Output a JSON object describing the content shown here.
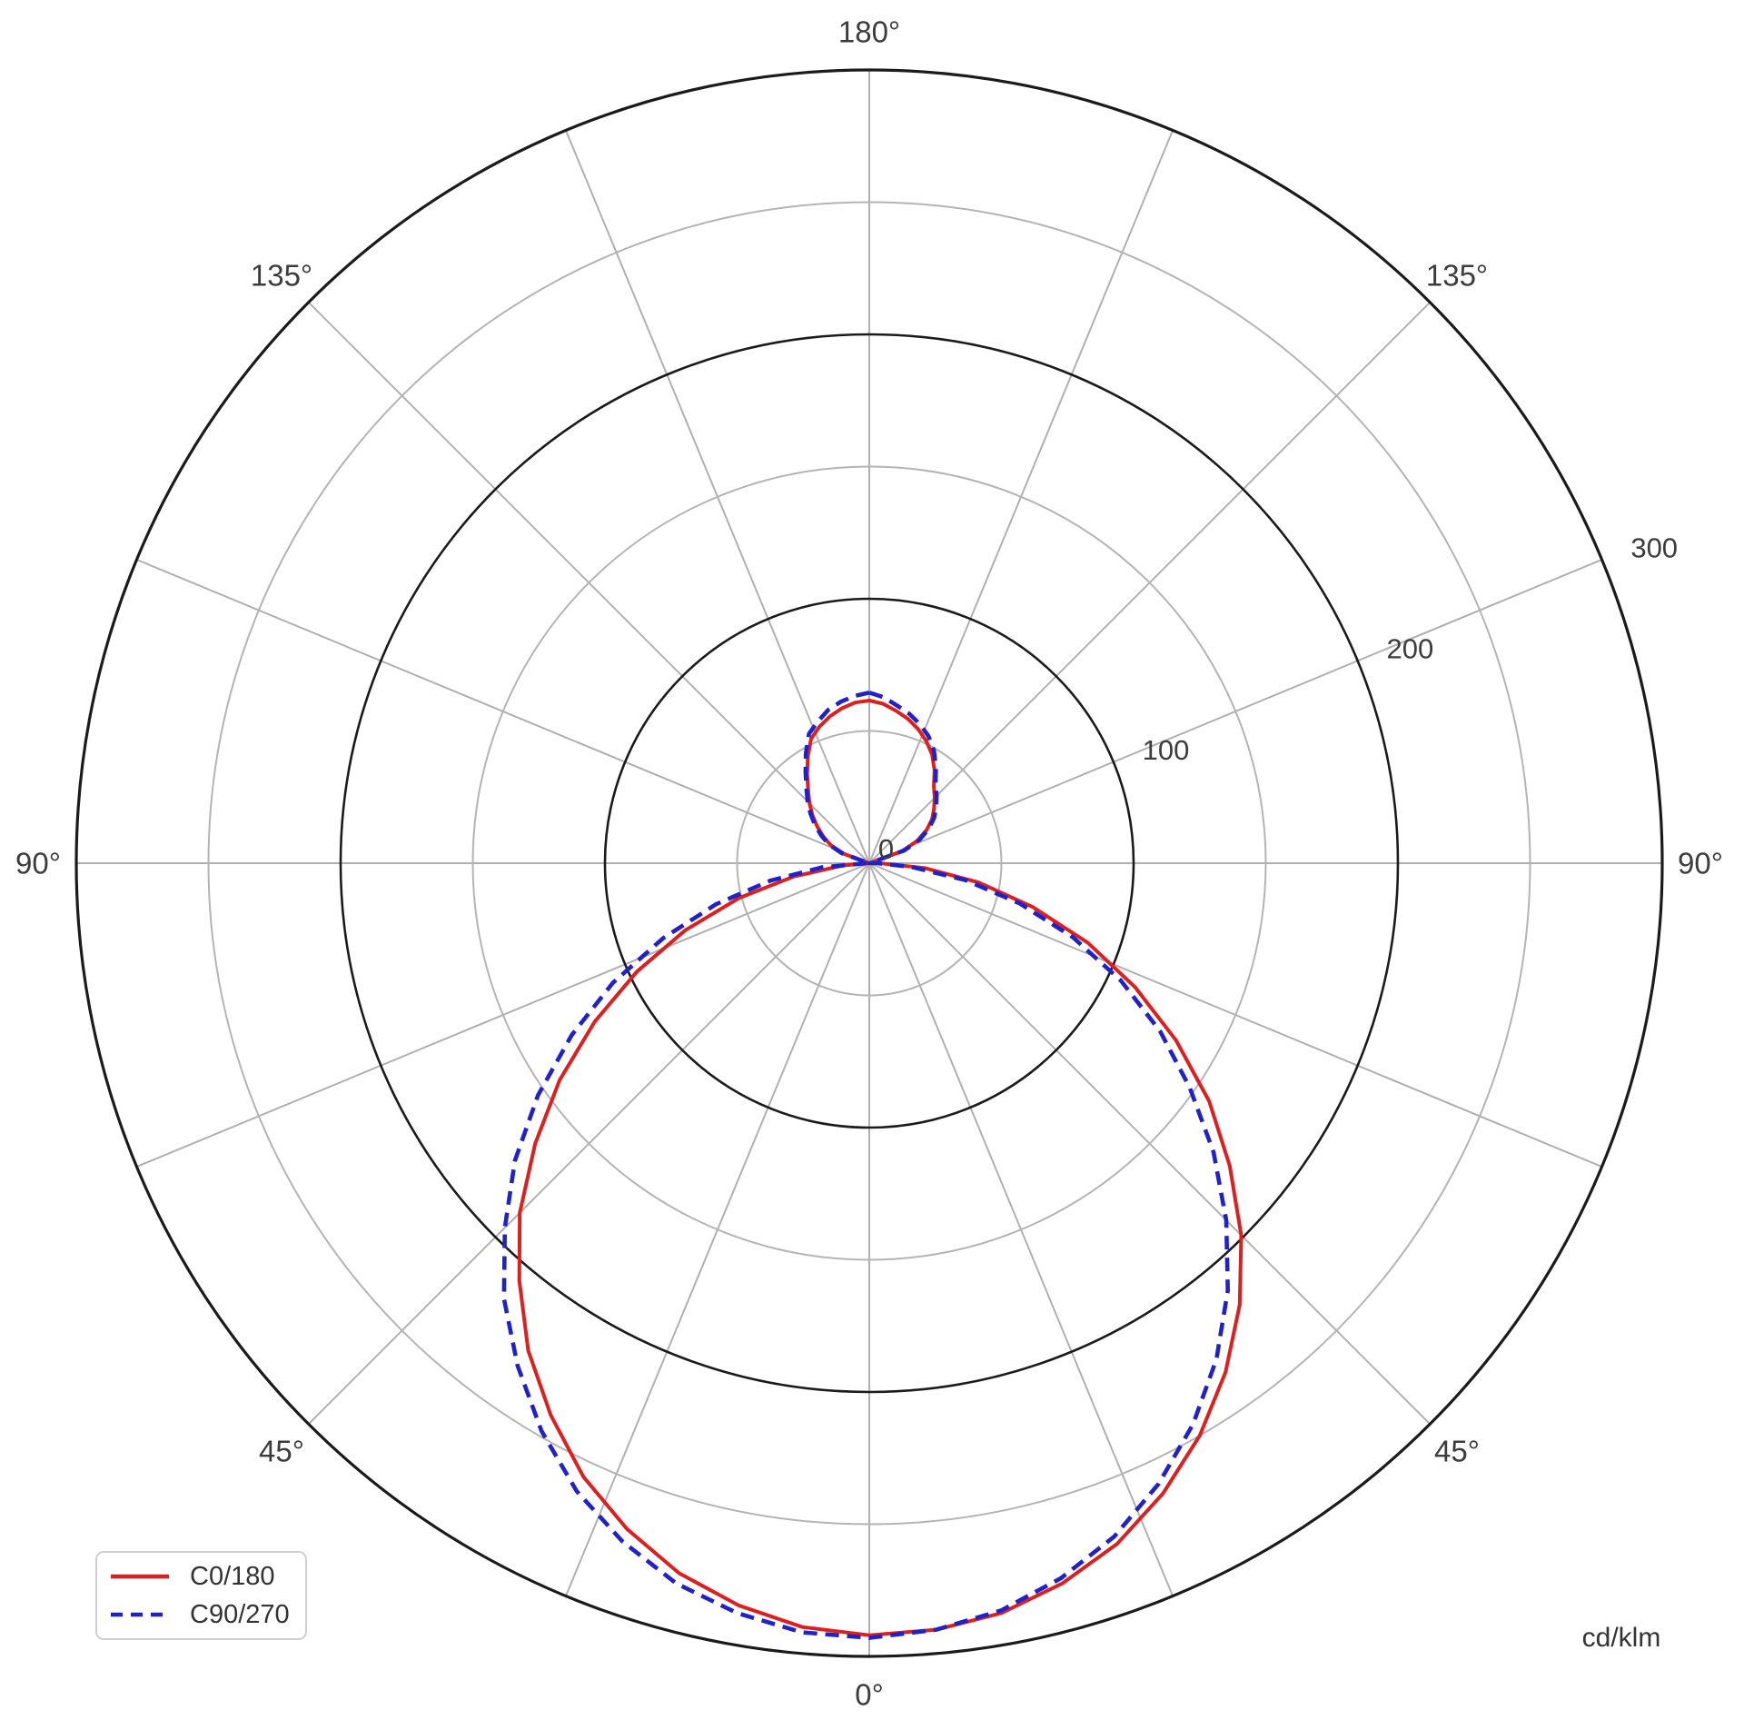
{
  "units_label": "cd/klm",
  "colors": {
    "background": "#ffffff",
    "grid_minor": "#b4b4b4",
    "grid_major": "#1b1b1b",
    "spoke": "#b0b0b0",
    "text": "#3c3c3c",
    "c0_180": "#dc1f1f",
    "c90_270": "#2121c8"
  },
  "legend": {
    "items": [
      {
        "label": "C0/180",
        "color": "#dc1f1f",
        "style": "solid",
        "dasharray": ""
      },
      {
        "label": "C90/270",
        "color": "#2121c8",
        "style": "dashed",
        "dasharray": "13 9"
      }
    ]
  },
  "chart_data": {
    "type": "line",
    "subtype": "polar-photometric",
    "title": "",
    "units": "cd/klm",
    "angle_convention": "gamma measured from downward vertical (0° at bottom, 180° at top); positive angles to the right half (C0 / C90 side), negative to the left half (C180 / C270 side)",
    "gamma_deg": [
      -180,
      -175,
      -170,
      -165,
      -160,
      -155,
      -150,
      -145,
      -140,
      -135,
      -130,
      -125,
      -120,
      -115,
      -110,
      -105,
      -100,
      -95,
      -90,
      -85,
      -80,
      -75,
      -70,
      -65,
      -60,
      -55,
      -50,
      -45,
      -40,
      -35,
      -30,
      -25,
      -20,
      -15,
      -10,
      -5,
      0,
      5,
      10,
      15,
      20,
      25,
      30,
      35,
      40,
      45,
      50,
      55,
      60,
      65,
      70,
      75,
      80,
      85,
      90,
      95,
      100,
      105,
      110,
      115,
      120,
      125,
      130,
      135,
      140,
      145,
      150,
      155,
      160,
      165,
      170,
      175,
      180
    ],
    "series": [
      {
        "name": "C0/180",
        "style": "solid",
        "color": "#dc1f1f",
        "values": [
          61.5,
          61,
          59.5,
          57.5,
          55,
          52,
          46.5,
          41,
          36,
          32,
          28,
          24,
          20,
          16,
          10,
          0,
          0,
          0,
          0,
          10,
          29,
          51,
          74,
          97,
          120,
          143,
          165,
          187,
          206,
          225,
          241,
          256,
          268,
          278,
          285,
          290,
          292,
          291,
          288,
          282,
          274,
          263,
          250,
          235,
          218,
          199,
          178,
          157,
          134,
          111,
          88,
          64,
          42,
          21,
          4,
          0,
          0,
          0,
          13,
          20,
          25,
          29,
          32,
          35,
          38,
          43,
          47.5,
          51,
          54,
          56.5,
          58.5,
          60.5,
          61.5
        ]
      },
      {
        "name": "C90/270",
        "style": "dashed",
        "color": "#2121c8",
        "values": [
          64.5,
          63.5,
          62,
          60,
          57,
          54,
          48,
          42,
          37,
          33,
          29,
          25,
          21,
          17,
          11,
          0,
          0,
          0,
          1,
          18,
          38,
          60,
          83,
          107,
          130,
          153,
          175,
          195,
          215,
          232,
          248,
          262,
          273,
          282,
          288,
          292,
          293,
          291,
          287,
          280,
          271,
          259,
          245,
          229,
          211,
          191,
          170,
          148,
          127,
          105,
          82,
          59,
          37,
          16,
          3,
          0,
          0,
          0,
          14,
          21,
          26,
          30,
          33,
          36,
          39,
          44,
          49,
          53,
          56,
          58.5,
          60.5,
          63,
          64.5
        ]
      }
    ],
    "r_axis": {
      "min": 0,
      "max": 300,
      "minor_rings": [
        50,
        150,
        250
      ],
      "major_rings": [
        100,
        200
      ],
      "rim": 300,
      "tick_labels": [
        {
          "text": "0",
          "value": 0
        },
        {
          "text": "100",
          "value": 100
        },
        {
          "text": "200",
          "value": 200
        },
        {
          "text": "300",
          "value": 300
        }
      ],
      "tick_label_direction_deg": 112.5,
      "unit": "cd/klm"
    },
    "angle_axis": {
      "spoke_step_deg": 22.5,
      "labels": [
        {
          "text": "0°",
          "gamma": 0
        },
        {
          "text": "45°",
          "gamma": 45
        },
        {
          "text": "45°",
          "gamma": -45
        },
        {
          "text": "90°",
          "gamma": 90
        },
        {
          "text": "90°",
          "gamma": -90
        },
        {
          "text": "135°",
          "gamma": 135
        },
        {
          "text": "135°",
          "gamma": -135
        },
        {
          "text": "180°",
          "gamma": 180
        }
      ]
    },
    "legend_entries": [
      "C0/180",
      "C90/270"
    ],
    "annotations": [
      "cd/klm"
    ]
  }
}
